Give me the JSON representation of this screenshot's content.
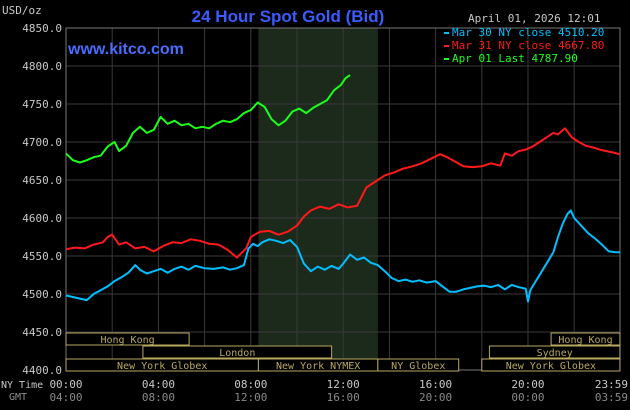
{
  "chart_data": {
    "type": "line",
    "title": "24 Hour Spot Gold (Bid)",
    "watermark": "www.kitco.com",
    "unit_label": "USD/oz",
    "timestamp": "April 01, 2026 12:01",
    "ylim": [
      4400,
      4850
    ],
    "y_ticks": [
      "4850.0",
      "4800.0",
      "4750.0",
      "4700.0",
      "4650.0",
      "4600.0",
      "4550.0",
      "4500.0",
      "4450.0",
      "4400.0"
    ],
    "x_range_hours": [
      0,
      23.983
    ],
    "x_ticks_ny": [
      "00:00",
      "04:00",
      "08:00",
      "12:00",
      "16:00",
      "20:00",
      "23:59"
    ],
    "x_ticks_gmt": [
      "04:00",
      "08:00",
      "12:00",
      "16:00",
      "20:00",
      "00:00",
      "03:59"
    ],
    "x_label_ny": "NY Time",
    "x_label_gmt": "GMT",
    "nymex_session_hours": [
      8.33,
      13.5
    ],
    "grid": true,
    "legend_position": "top-right",
    "colors": {
      "background": "#000000",
      "grid": "#3a3a3a",
      "session_shade": "#1c2a1c",
      "title": "#3a5cff",
      "watermark": "#4a6cff",
      "axis_text": "#c8c8c8",
      "market_bar": "#b8a860"
    },
    "series": [
      {
        "name": "Mar 30 NY close 4510.20",
        "color": "#00bfff",
        "points": [
          [
            0,
            4498
          ],
          [
            0.3,
            4496
          ],
          [
            0.6,
            4494
          ],
          [
            0.9,
            4492
          ],
          [
            1.2,
            4500
          ],
          [
            1.5,
            4505
          ],
          [
            1.8,
            4510
          ],
          [
            2.1,
            4517
          ],
          [
            2.4,
            4522
          ],
          [
            2.7,
            4528
          ],
          [
            3.0,
            4538
          ],
          [
            3.2,
            4532
          ],
          [
            3.5,
            4527
          ],
          [
            3.8,
            4530
          ],
          [
            4.1,
            4533
          ],
          [
            4.4,
            4528
          ],
          [
            4.7,
            4533
          ],
          [
            5.0,
            4536
          ],
          [
            5.3,
            4532
          ],
          [
            5.6,
            4537
          ],
          [
            6.0,
            4534
          ],
          [
            6.4,
            4533
          ],
          [
            6.8,
            4535
          ],
          [
            7.1,
            4532
          ],
          [
            7.4,
            4534
          ],
          [
            7.7,
            4538
          ],
          [
            7.9,
            4560
          ],
          [
            8.1,
            4566
          ],
          [
            8.3,
            4563
          ],
          [
            8.5,
            4568
          ],
          [
            8.8,
            4572
          ],
          [
            9.1,
            4570
          ],
          [
            9.4,
            4567
          ],
          [
            9.7,
            4571
          ],
          [
            10.0,
            4562
          ],
          [
            10.3,
            4540
          ],
          [
            10.6,
            4530
          ],
          [
            10.9,
            4536
          ],
          [
            11.2,
            4532
          ],
          [
            11.5,
            4537
          ],
          [
            11.8,
            4533
          ],
          [
            12.0,
            4540
          ],
          [
            12.3,
            4552
          ],
          [
            12.6,
            4545
          ],
          [
            12.9,
            4548
          ],
          [
            13.2,
            4541
          ],
          [
            13.5,
            4538
          ],
          [
            13.8,
            4530
          ],
          [
            14.1,
            4521
          ],
          [
            14.4,
            4517
          ],
          [
            14.7,
            4519
          ],
          [
            15.0,
            4516
          ],
          [
            15.3,
            4518
          ],
          [
            15.6,
            4515
          ],
          [
            16.0,
            4517
          ],
          [
            16.3,
            4510
          ],
          [
            16.6,
            4503
          ],
          [
            16.9,
            4503
          ],
          [
            17.2,
            4506
          ],
          [
            17.5,
            4508
          ],
          [
            17.8,
            4510
          ],
          [
            18.1,
            4511
          ],
          [
            18.4,
            4509
          ],
          [
            18.7,
            4512
          ],
          [
            19.0,
            4506
          ],
          [
            19.3,
            4512
          ],
          [
            19.6,
            4509
          ],
          [
            19.9,
            4507
          ],
          [
            20.0,
            4490
          ],
          [
            20.1,
            4505
          ],
          [
            20.3,
            4515
          ],
          [
            20.6,
            4530
          ],
          [
            20.9,
            4545
          ],
          [
            21.1,
            4555
          ],
          [
            21.3,
            4575
          ],
          [
            21.5,
            4592
          ],
          [
            21.7,
            4605
          ],
          [
            21.85,
            4610
          ],
          [
            22.0,
            4600
          ],
          [
            22.3,
            4590
          ],
          [
            22.6,
            4580
          ],
          [
            22.9,
            4573
          ],
          [
            23.2,
            4565
          ],
          [
            23.5,
            4556
          ],
          [
            23.8,
            4555
          ],
          [
            23.98,
            4555
          ]
        ]
      },
      {
        "name": "Mar 31 NY close 4667.80",
        "color": "#ff1a1a",
        "points": [
          [
            0,
            4559
          ],
          [
            0.4,
            4561
          ],
          [
            0.8,
            4560
          ],
          [
            1.2,
            4565
          ],
          [
            1.6,
            4568
          ],
          [
            1.8,
            4575
          ],
          [
            2.0,
            4578
          ],
          [
            2.3,
            4565
          ],
          [
            2.6,
            4568
          ],
          [
            3.0,
            4560
          ],
          [
            3.4,
            4562
          ],
          [
            3.8,
            4556
          ],
          [
            4.2,
            4563
          ],
          [
            4.6,
            4568
          ],
          [
            5.0,
            4567
          ],
          [
            5.4,
            4572
          ],
          [
            5.8,
            4570
          ],
          [
            6.2,
            4566
          ],
          [
            6.6,
            4565
          ],
          [
            7.0,
            4558
          ],
          [
            7.4,
            4548
          ],
          [
            7.8,
            4560
          ],
          [
            8.0,
            4575
          ],
          [
            8.4,
            4582
          ],
          [
            8.8,
            4583
          ],
          [
            9.2,
            4578
          ],
          [
            9.6,
            4582
          ],
          [
            10.0,
            4590
          ],
          [
            10.3,
            4602
          ],
          [
            10.6,
            4610
          ],
          [
            11.0,
            4615
          ],
          [
            11.4,
            4612
          ],
          [
            11.8,
            4618
          ],
          [
            12.2,
            4614
          ],
          [
            12.6,
            4616
          ],
          [
            13.0,
            4640
          ],
          [
            13.4,
            4648
          ],
          [
            13.8,
            4656
          ],
          [
            14.2,
            4660
          ],
          [
            14.6,
            4665
          ],
          [
            15.0,
            4668
          ],
          [
            15.4,
            4672
          ],
          [
            15.8,
            4678
          ],
          [
            16.2,
            4684
          ],
          [
            16.5,
            4680
          ],
          [
            16.8,
            4675
          ],
          [
            17.2,
            4668
          ],
          [
            17.6,
            4667
          ],
          [
            18.0,
            4668
          ],
          [
            18.4,
            4672
          ],
          [
            18.8,
            4669
          ],
          [
            19.0,
            4685
          ],
          [
            19.3,
            4682
          ],
          [
            19.6,
            4688
          ],
          [
            19.9,
            4690
          ],
          [
            20.2,
            4694
          ],
          [
            20.5,
            4700
          ],
          [
            20.8,
            4706
          ],
          [
            21.1,
            4712
          ],
          [
            21.3,
            4710
          ],
          [
            21.6,
            4718
          ],
          [
            21.9,
            4706
          ],
          [
            22.2,
            4700
          ],
          [
            22.5,
            4695
          ],
          [
            22.8,
            4693
          ],
          [
            23.1,
            4690
          ],
          [
            23.4,
            4688
          ],
          [
            23.7,
            4686
          ],
          [
            23.98,
            4684
          ]
        ]
      },
      {
        "name": "Apr 01 Last 4787.90",
        "color": "#1aff1a",
        "points": [
          [
            0,
            4685
          ],
          [
            0.3,
            4676
          ],
          [
            0.6,
            4673
          ],
          [
            0.9,
            4676
          ],
          [
            1.2,
            4680
          ],
          [
            1.5,
            4682
          ],
          [
            1.8,
            4694
          ],
          [
            2.1,
            4700
          ],
          [
            2.3,
            4688
          ],
          [
            2.6,
            4695
          ],
          [
            2.9,
            4712
          ],
          [
            3.2,
            4720
          ],
          [
            3.5,
            4712
          ],
          [
            3.8,
            4716
          ],
          [
            4.1,
            4733
          ],
          [
            4.4,
            4724
          ],
          [
            4.7,
            4728
          ],
          [
            5.0,
            4722
          ],
          [
            5.3,
            4724
          ],
          [
            5.6,
            4718
          ],
          [
            5.9,
            4720
          ],
          [
            6.2,
            4718
          ],
          [
            6.5,
            4724
          ],
          [
            6.8,
            4728
          ],
          [
            7.1,
            4726
          ],
          [
            7.4,
            4730
          ],
          [
            7.7,
            4738
          ],
          [
            8.0,
            4742
          ],
          [
            8.3,
            4752
          ],
          [
            8.6,
            4746
          ],
          [
            8.9,
            4730
          ],
          [
            9.2,
            4722
          ],
          [
            9.5,
            4728
          ],
          [
            9.8,
            4740
          ],
          [
            10.1,
            4744
          ],
          [
            10.4,
            4738
          ],
          [
            10.7,
            4745
          ],
          [
            11.0,
            4750
          ],
          [
            11.3,
            4755
          ],
          [
            11.6,
            4768
          ],
          [
            11.9,
            4775
          ],
          [
            12.1,
            4784
          ],
          [
            12.3,
            4788
          ]
        ]
      }
    ],
    "market_sessions": [
      {
        "label": "Hong Kong",
        "start": 0,
        "end": 5.33,
        "row": 0
      },
      {
        "label": "London",
        "start": 3.33,
        "end": 11.5,
        "row": 1
      },
      {
        "label": "New York Globex",
        "start": 0,
        "end": 8.33,
        "row": 2
      },
      {
        "label": "New York NYMEX",
        "start": 8.33,
        "end": 13.5,
        "row": 2
      },
      {
        "label": "NY Globex",
        "start": 13.5,
        "end": 17.0,
        "row": 2
      },
      {
        "label": "Hong Kong",
        "start": 21.0,
        "end": 23.98,
        "row": 0
      },
      {
        "label": "Sydney",
        "start": 18.33,
        "end": 23.98,
        "row": 1
      },
      {
        "label": "New York Globex",
        "start": 18.0,
        "end": 23.98,
        "row": 2
      }
    ]
  }
}
